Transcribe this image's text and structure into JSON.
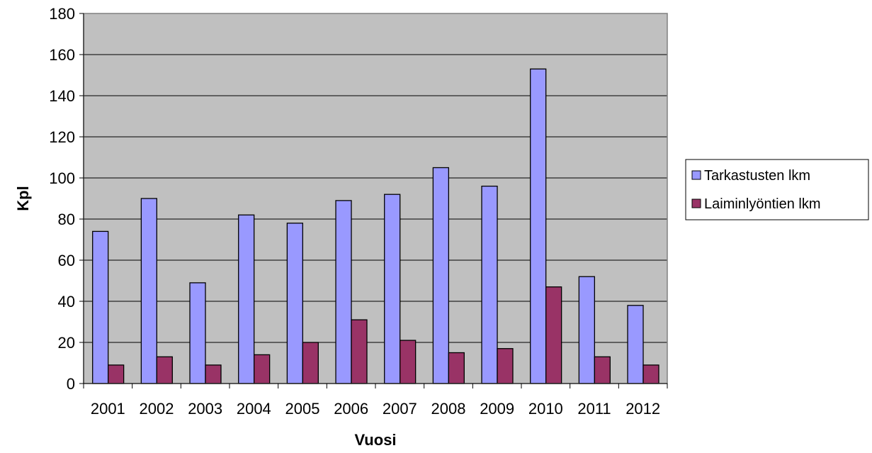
{
  "chart_data": {
    "type": "bar",
    "categories": [
      "2001",
      "2002",
      "2003",
      "2004",
      "2005",
      "2006",
      "2007",
      "2008",
      "2009",
      "2010",
      "2011",
      "2012"
    ],
    "series": [
      {
        "name": "Tarkastusten lkm",
        "color": "#9999ff",
        "values": [
          74,
          90,
          49,
          82,
          78,
          89,
          92,
          105,
          96,
          153,
          52,
          38
        ]
      },
      {
        "name": "Laiminlyöntien lkm",
        "color": "#993366",
        "values": [
          9,
          13,
          9,
          14,
          20,
          31,
          21,
          15,
          17,
          47,
          13,
          9
        ]
      }
    ],
    "xlabel": "Vuosi",
    "ylabel": "Kpl",
    "ylim": [
      0,
      180
    ],
    "yticks": [
      0,
      20,
      40,
      60,
      80,
      100,
      120,
      140,
      160,
      180
    ],
    "grid": true,
    "plot_background": "#c0c0c0",
    "legend_position": "right"
  }
}
